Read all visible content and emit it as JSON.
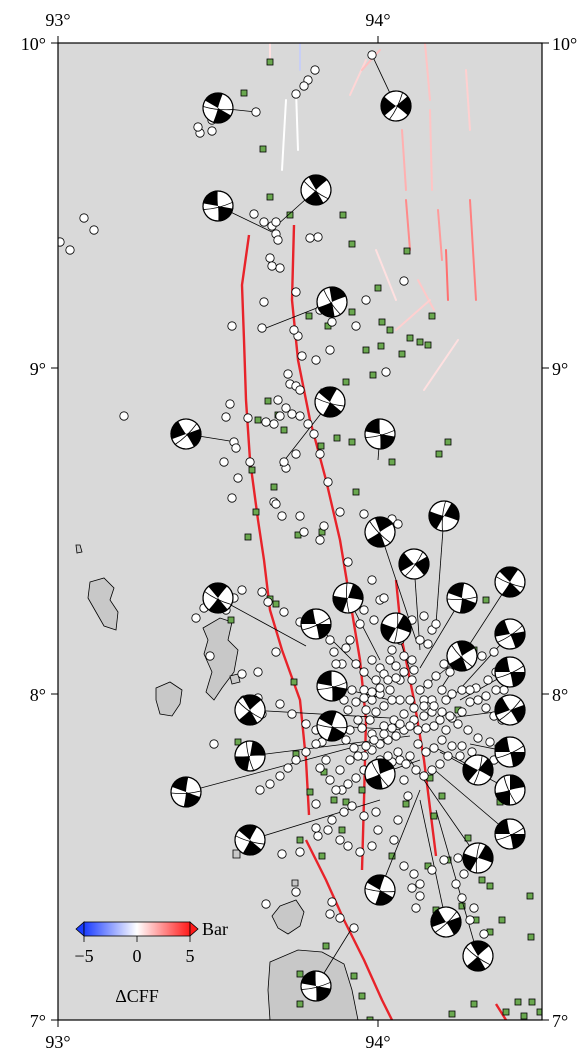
{
  "map": {
    "background_color": "#d9d9d9",
    "land_color": "#c8c8c8",
    "fault_color": "#e8232a",
    "station_color": "#6aa84f",
    "event_color": "#ffffff",
    "lon_range": [
      93,
      94.5
    ],
    "lat_range": [
      7,
      10
    ],
    "lon_ticks": [
      {
        "value": 93,
        "label": "93°"
      },
      {
        "value": 94,
        "label": "94°"
      }
    ],
    "lat_ticks": [
      {
        "value": 10,
        "label": "10°"
      },
      {
        "value": 9,
        "label": "9°"
      },
      {
        "value": 8,
        "label": "8°"
      },
      {
        "value": 7,
        "label": "7°"
      }
    ]
  },
  "colorbar": {
    "unit_label": "Bar",
    "quantity_label": "ΔCFF",
    "ticks": [
      "−5",
      "0",
      "5"
    ],
    "min": -5,
    "max": 5,
    "colors": [
      "#0000ff",
      "#ffffff",
      "#ff0000"
    ]
  }
}
